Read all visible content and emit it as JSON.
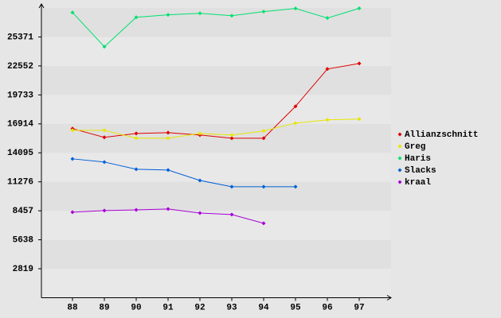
{
  "chart_data": {
    "type": "line",
    "categories": [
      "88",
      "89",
      "90",
      "91",
      "92",
      "93",
      "94",
      "95",
      "96",
      "97"
    ],
    "series": [
      {
        "name": "Allianzschnitt",
        "color": "#e00000",
        "values": [
          16450,
          15600,
          15980,
          16060,
          15830,
          15520,
          15520,
          18620,
          22250,
          22790
        ]
      },
      {
        "name": "Greg",
        "color": "#e6e600",
        "values": [
          16290,
          16290,
          15520,
          15520,
          15980,
          15830,
          16220,
          16990,
          17300,
          17380
        ]
      },
      {
        "name": "Haris",
        "color": "#00e070",
        "values": [
          27750,
          24420,
          27280,
          27520,
          27670,
          27440,
          27830,
          28140,
          27210,
          28150
        ]
      },
      {
        "name": "Slacks",
        "color": "#0060d8",
        "values": [
          13510,
          13200,
          12500,
          12420,
          11410,
          10800,
          10800,
          10800,
          null,
          null
        ]
      },
      {
        "name": "kraal",
        "color": "#a800d8",
        "values": [
          8320,
          8480,
          8550,
          8630,
          8240,
          8090,
          7240,
          null,
          null,
          null
        ]
      }
    ],
    "ylim": [
      0,
      28190
    ],
    "yticks": [
      2819,
      5638,
      8457,
      11276,
      14095,
      16914,
      19733,
      22552,
      25371
    ],
    "grid": true,
    "legend": "right"
  }
}
